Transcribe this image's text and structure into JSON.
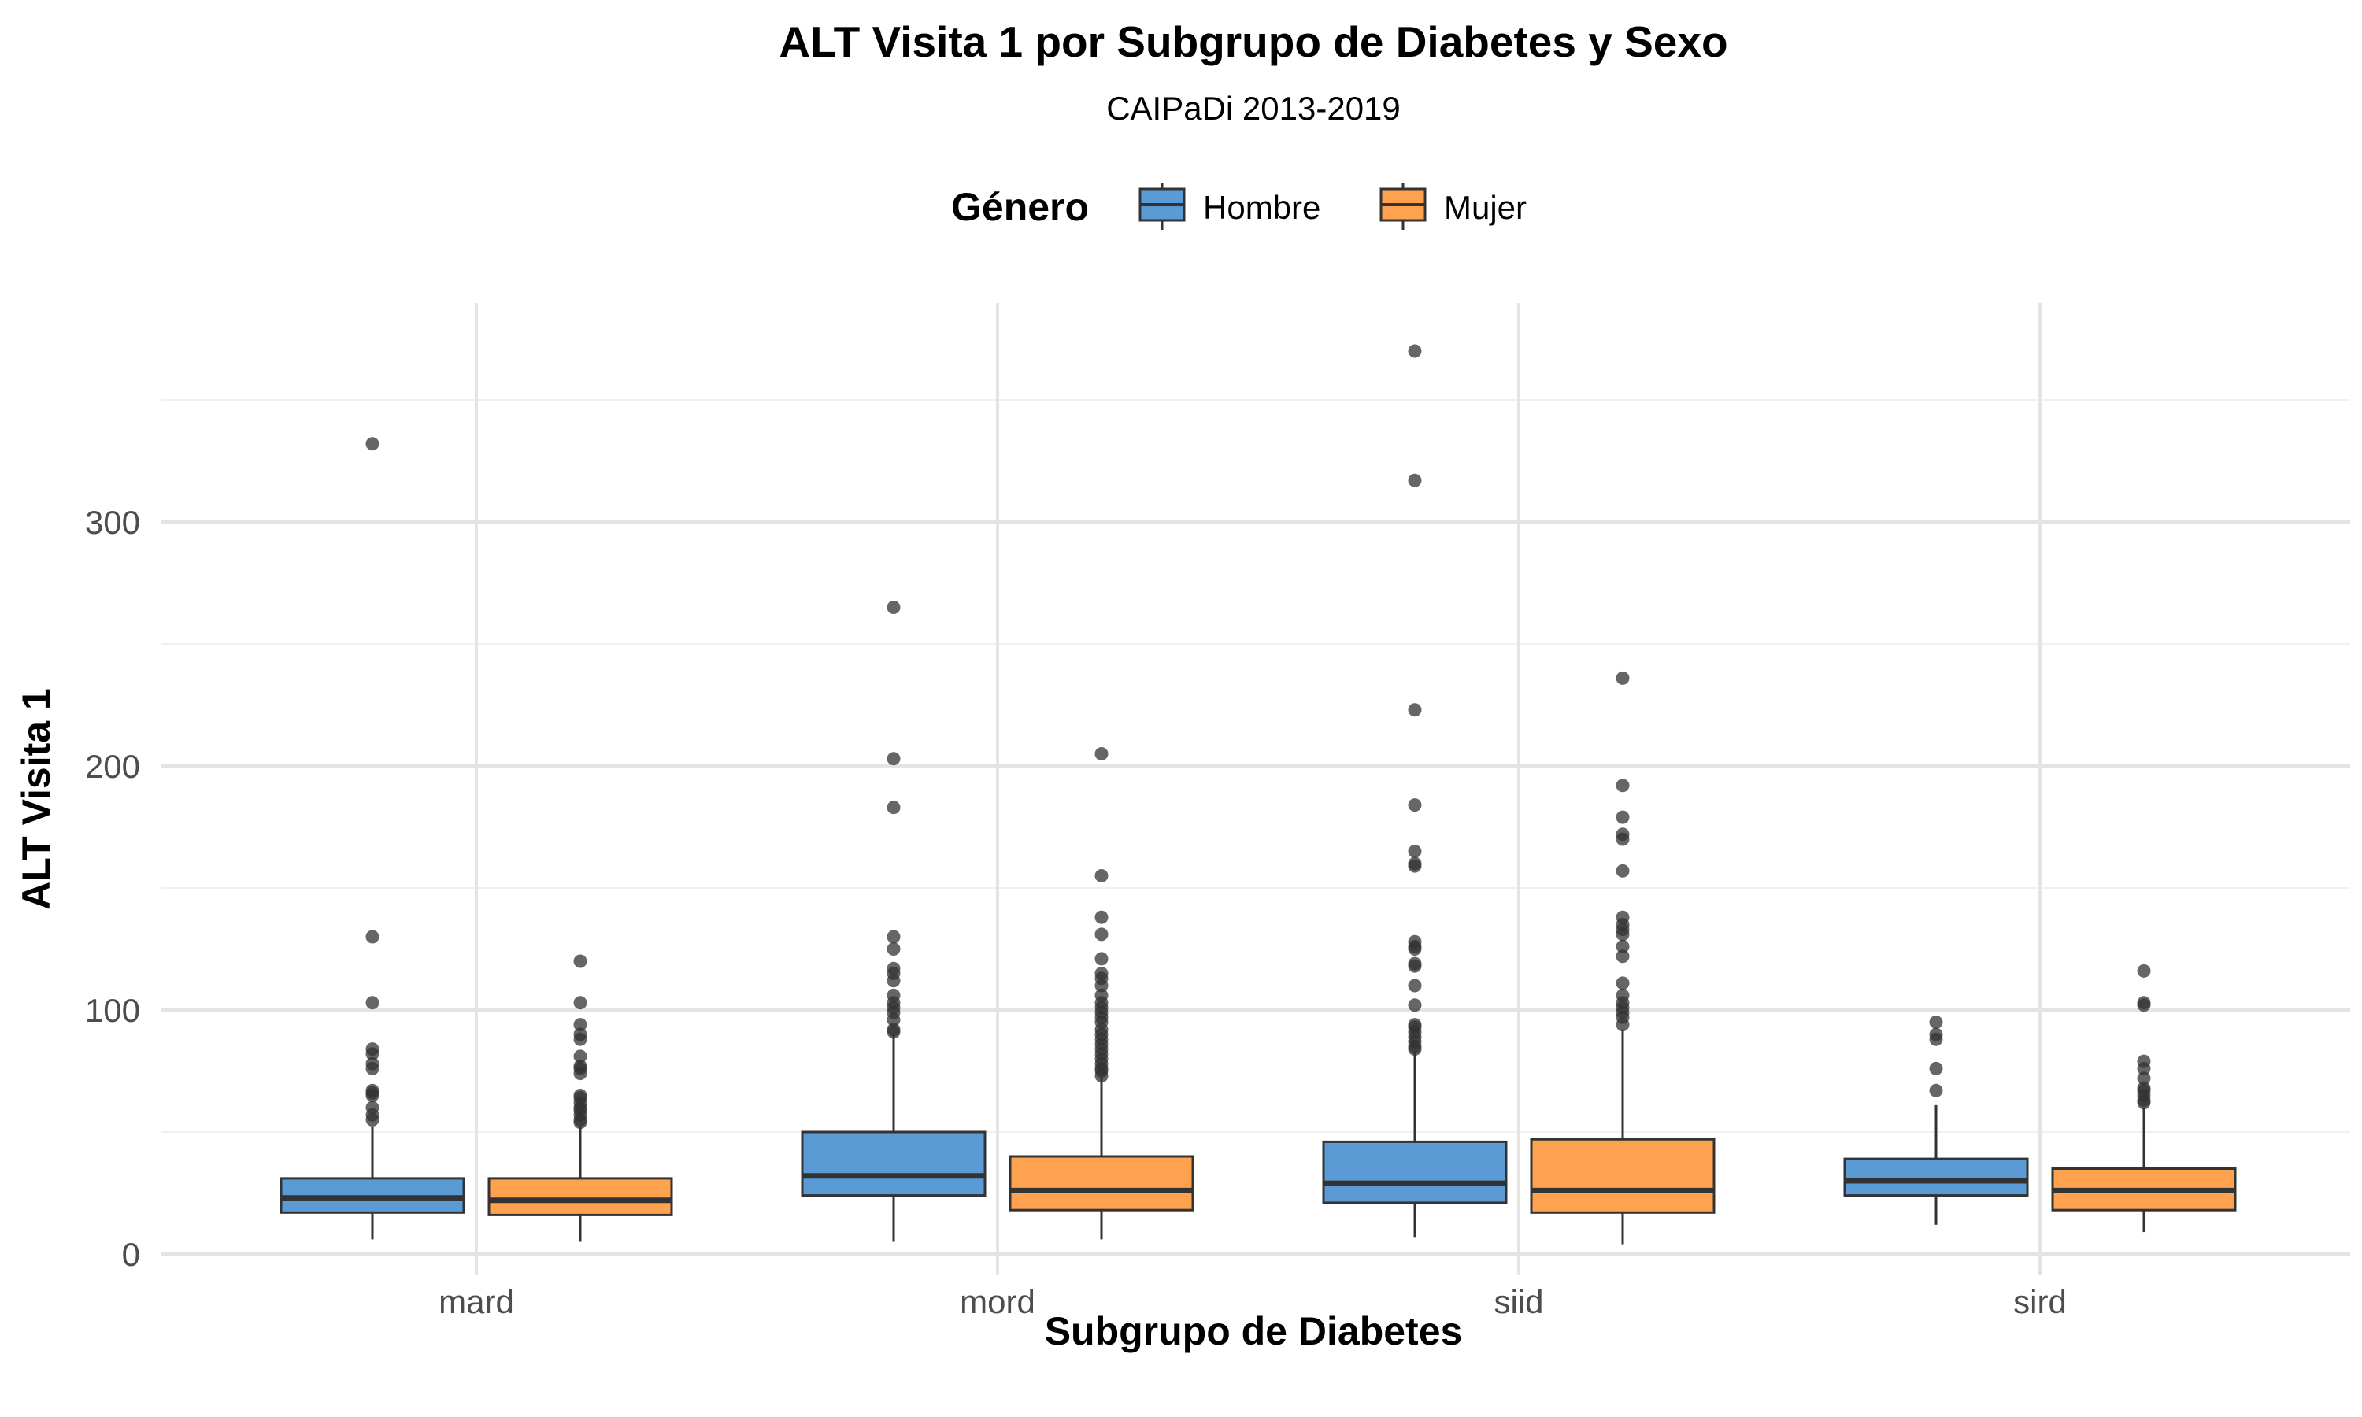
{
  "chart_data": {
    "type": "box",
    "title": "ALT Visita 1 por Subgrupo de Diabetes y Sexo",
    "subtitle": "CAIPaDi 2013-2019",
    "xlabel": "Subgrupo de Diabetes",
    "ylabel": "ALT Visita 1",
    "ylim": [
      -4,
      386
    ],
    "yticks": [
      0,
      100,
      200,
      300
    ],
    "ytick_labels": [
      "0",
      "100",
      "200",
      "300"
    ],
    "grid": true,
    "legend": {
      "title": "Género",
      "position": "top",
      "entries": [
        "Hombre",
        "Mujer"
      ]
    },
    "categories": [
      "mard",
      "mord",
      "siid",
      "sird"
    ],
    "series": [
      {
        "name": "Hombre",
        "color": "#5b9bd5",
        "boxes": [
          {
            "category": "mard",
            "min": 6,
            "q1": 17,
            "median": 23,
            "q3": 31,
            "max": 52,
            "outliers": [
              332,
              130,
              103,
              84,
              82,
              78,
              76,
              67,
              66,
              65,
              60,
              57,
              55
            ]
          },
          {
            "category": "mord",
            "min": 5,
            "q1": 24,
            "median": 32,
            "q3": 50,
            "max": 90,
            "outliers": [
              265,
              203,
              183,
              130,
              125,
              117,
              115,
              112,
              106,
              103,
              101,
              99,
              96,
              92,
              91
            ]
          },
          {
            "category": "siid",
            "min": 7,
            "q1": 21,
            "median": 29,
            "q3": 46,
            "max": 83,
            "outliers": [
              370,
              317,
              223,
              184,
              165,
              160,
              159,
              128,
              126,
              125,
              119,
              118,
              110,
              102,
              94,
              93,
              91,
              89,
              87,
              85,
              84
            ]
          },
          {
            "category": "sird",
            "min": 12,
            "q1": 24,
            "median": 30,
            "q3": 39,
            "max": 61,
            "outliers": [
              95,
              90,
              88,
              76,
              67
            ]
          }
        ]
      },
      {
        "name": "Mujer",
        "color": "#ffa24f",
        "boxes": [
          {
            "category": "mard",
            "min": 5,
            "q1": 16,
            "median": 22,
            "q3": 31,
            "max": 52,
            "outliers": [
              120,
              103,
              94,
              90,
              88,
              81,
              77,
              76,
              74,
              65,
              64,
              62,
              60,
              59,
              57,
              55,
              54
            ]
          },
          {
            "category": "mord",
            "min": 6,
            "q1": 18,
            "median": 26,
            "q3": 40,
            "max": 72,
            "outliers": [
              205,
              155,
              138,
              131,
              121,
              115,
              113,
              110,
              106,
              103,
              101,
              99,
              97,
              95,
              92,
              90,
              88,
              86,
              84,
              82,
              80,
              78,
              76,
              75,
              73
            ]
          },
          {
            "category": "siid",
            "min": 4,
            "q1": 17,
            "median": 26,
            "q3": 47,
            "max": 92,
            "outliers": [
              236,
              192,
              179,
              172,
              170,
              157,
              138,
              135,
              133,
              131,
              126,
              122,
              111,
              106,
              103,
              101,
              99,
              97,
              94
            ]
          },
          {
            "category": "sird",
            "min": 9,
            "q1": 18,
            "median": 26,
            "q3": 35,
            "max": 60,
            "outliers": [
              116,
              103,
              102,
              79,
              76,
              72,
              68,
              67,
              65,
              63,
              62
            ]
          }
        ]
      }
    ]
  }
}
